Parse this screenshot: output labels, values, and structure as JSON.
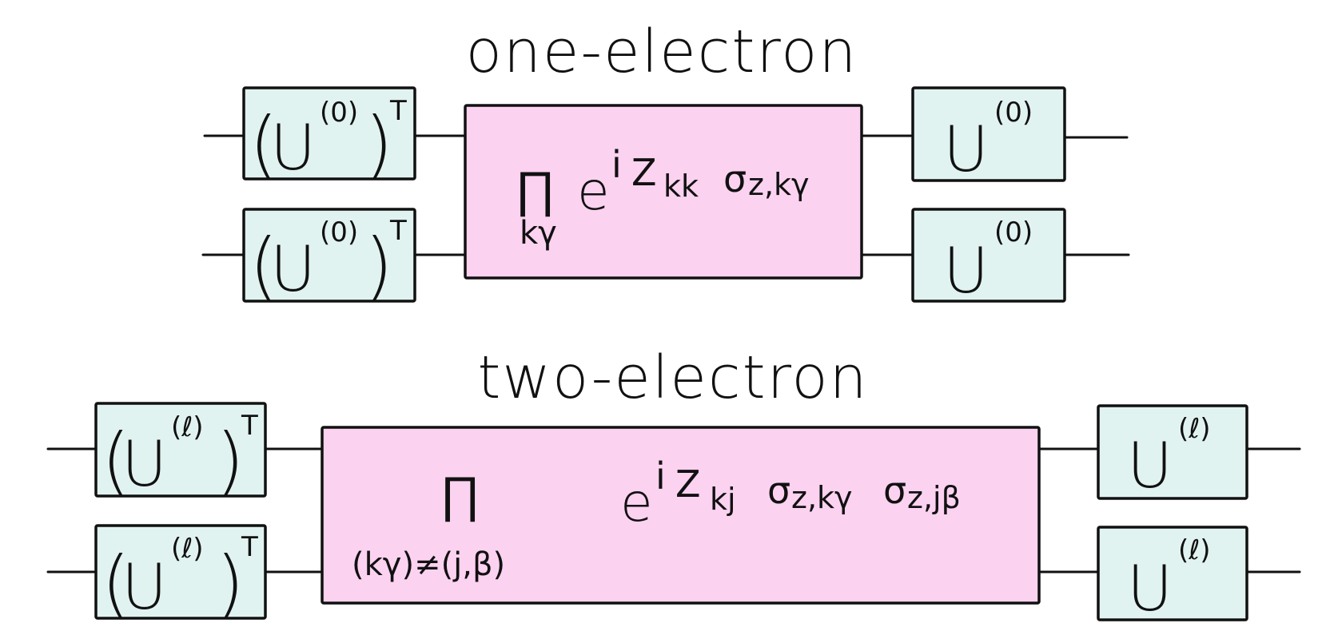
{
  "one_electron": {
    "title": "one-electron",
    "left_gate": {
      "base": "U",
      "superscript": "(0)",
      "transpose": "T"
    },
    "right_gate": {
      "base": "U",
      "superscript": "(0)"
    },
    "operator": {
      "product_symbol": "∏",
      "product_index": "kγ",
      "base": "e",
      "exp_i": "i",
      "exp_Z": "Z",
      "exp_Z_sub": "kk",
      "exp_sigma": "σ",
      "exp_sigma_sub": "z,kγ"
    }
  },
  "two_electron": {
    "title": "two-electron",
    "left_gate": {
      "base": "U",
      "superscript": "(ℓ)",
      "transpose": "T"
    },
    "right_gate": {
      "base": "U",
      "superscript": "(ℓ)"
    },
    "operator": {
      "product_symbol": "∏",
      "product_index": "(kγ)≠(j,β)",
      "base": "e",
      "exp_i": "i",
      "exp_Z": "Z",
      "exp_Z_sub": "kj",
      "exp_sigma1": "σ",
      "exp_sigma1_sub": "z,kγ",
      "exp_sigma2": "σ",
      "exp_sigma2_sub": "z,jβ"
    }
  }
}
